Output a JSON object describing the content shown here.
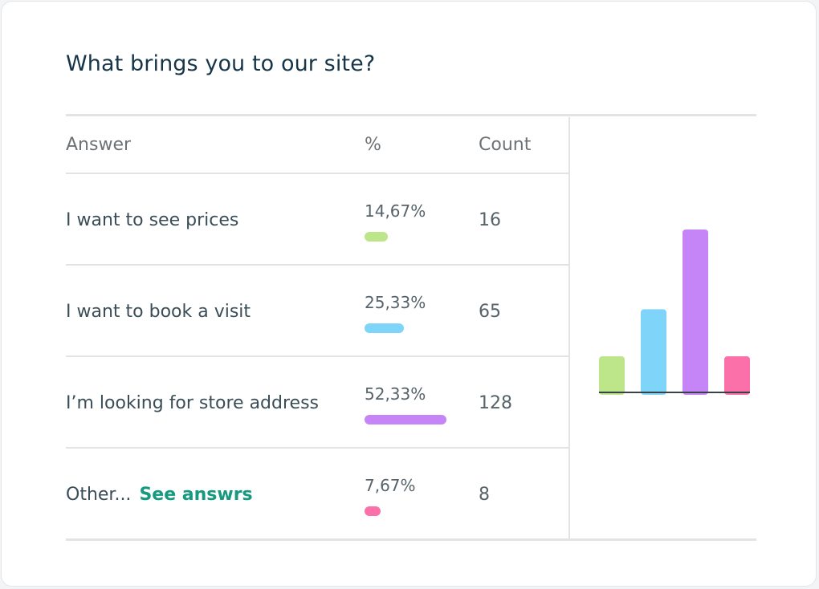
{
  "title": "What brings you to our site?",
  "headers": {
    "answer": "Answer",
    "percent": "%",
    "count": "Count"
  },
  "rows": [
    {
      "answer": "I want to see prices",
      "percent_label": "14,67%",
      "percent": 14.67,
      "count": "16",
      "color": "#bde68a"
    },
    {
      "answer": "I want to book a visit",
      "percent_label": "25,33%",
      "percent": 25.33,
      "count": "65",
      "color": "#7fd4fa"
    },
    {
      "answer": "I’m looking for store address",
      "percent_label": "52,33%",
      "percent": 52.33,
      "count": "128",
      "color": "#c685f7"
    },
    {
      "answer": "Other...",
      "link": "See answrs",
      "percent_label": "7,67%",
      "percent": 7.67,
      "count": "8",
      "color": "#fb70a8"
    }
  ],
  "chart_data": {
    "type": "bar",
    "categories": [
      "I want to see prices",
      "I want to book a visit",
      "I’m looking for store address",
      "Other..."
    ],
    "values": [
      16,
      65,
      128,
      8
    ],
    "colors": [
      "#bde68a",
      "#7fd4fa",
      "#c685f7",
      "#fb70a8"
    ],
    "grid": false,
    "axis_labels": false
  }
}
